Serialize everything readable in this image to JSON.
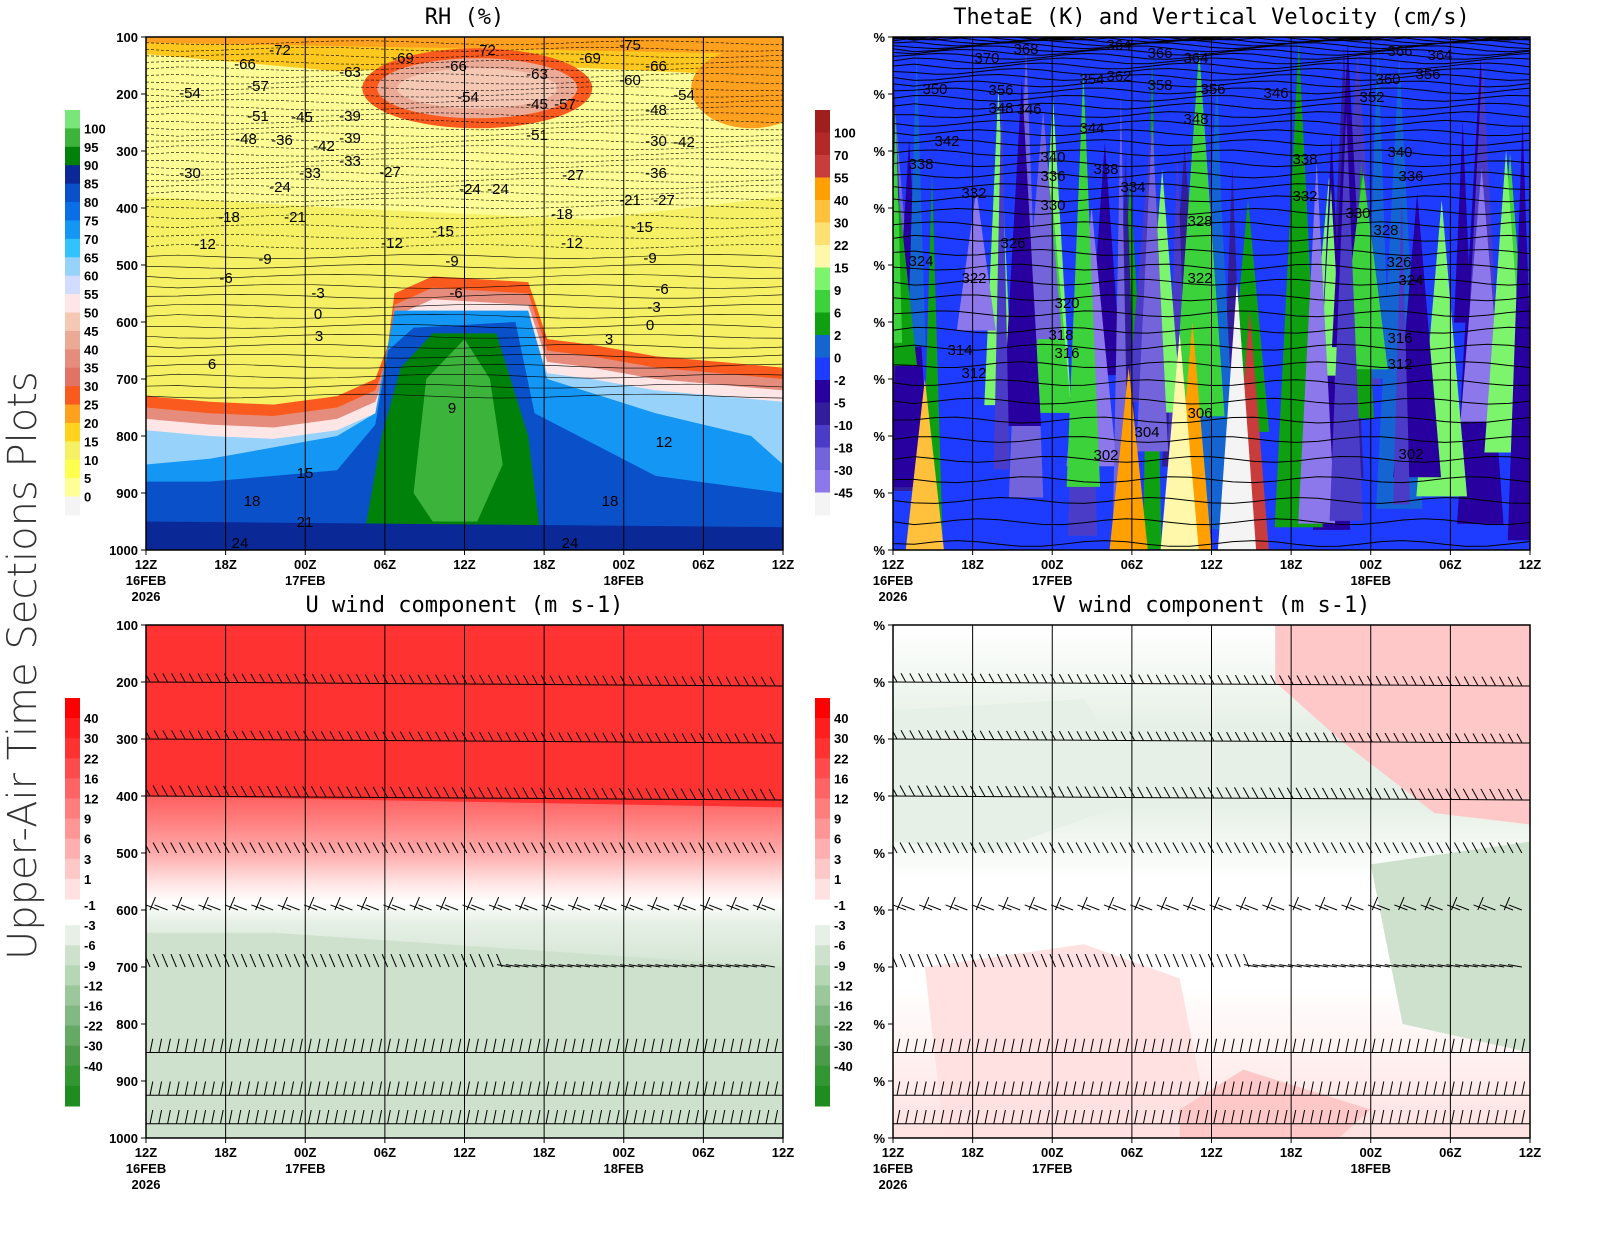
{
  "side_title": "Upper-Air Time Sections Plots",
  "x_ticks": [
    "12Z",
    "18Z",
    "00Z",
    "06Z",
    "12Z",
    "18Z",
    "00Z",
    "06Z",
    "12Z"
  ],
  "x_subticks": {
    "0": [
      "16FEB",
      "2026"
    ],
    "2": [
      "17FEB"
    ],
    "6": [
      "18FEB"
    ]
  },
  "chart_data": [
    {
      "type": "heatmap",
      "title": "RH (%)",
      "ylabel": "",
      "y_ticks": [
        "100",
        "200",
        "300",
        "400",
        "500",
        "600",
        "700",
        "800",
        "900",
        "1000"
      ],
      "ylim": [
        1000,
        100
      ],
      "colorbar": {
        "levels": [
          "100",
          "95",
          "90",
          "85",
          "80",
          "75",
          "70",
          "65",
          "60",
          "55",
          "50",
          "45",
          "40",
          "35",
          "30",
          "25",
          "20",
          "15",
          "10",
          "5",
          "0"
        ],
        "colors": [
          "#78e678",
          "#3cb43c",
          "#00820a",
          "#0a2896",
          "#0a50c8",
          "#0a6ee6",
          "#1496f5",
          "#32c3ff",
          "#96d2fa",
          "#d2dcff",
          "#ffe6e6",
          "#f5c8b4",
          "#ebaa96",
          "#e68c7d",
          "#e17364",
          "#fa5a1e",
          "#ffa01e",
          "#ffd21e",
          "#f5f064",
          "#ffff50",
          "#ffff96",
          "#f4f4f4"
        ]
      },
      "contour_labels": [
        "-72",
        "-66",
        "-63",
        "-69",
        "-66",
        "-72",
        "-63",
        "-69",
        "-75",
        "-66",
        "-60",
        "-54",
        "-57",
        "-51",
        "-45",
        "-48",
        "-54",
        "-57",
        "-51",
        "-45",
        "-54",
        "-48",
        "-42",
        "-39",
        "-36",
        "-33",
        "-30",
        "-39",
        "-33",
        "-42",
        "-36",
        "-30",
        "-27",
        "-24",
        "-21",
        "-27",
        "-24",
        "-27",
        "-21",
        "-24",
        "-18",
        "-15",
        "-18",
        "-15",
        "-12",
        "-9",
        "-12",
        "-12",
        "-9",
        "-6",
        "-9",
        "-6",
        "-6",
        "-3",
        "0",
        "-3",
        "0",
        "3",
        "3",
        "6",
        "9",
        "12",
        "15",
        "18",
        "18",
        "21",
        "24",
        "24"
      ]
    },
    {
      "type": "heatmap",
      "title": "ThetaE (K) and Vertical Velocity (cm/s)",
      "y_ticks": [
        "%",
        "%",
        "%",
        "%",
        "%",
        "%",
        "%",
        "%",
        "%",
        "%"
      ],
      "ylim": [
        1000,
        100
      ],
      "colorbar": {
        "levels": [
          "100",
          "70",
          "55",
          "40",
          "30",
          "22",
          "15",
          "9",
          "6",
          "2",
          "0",
          "-2",
          "-5",
          "-10",
          "-18",
          "-30",
          "-45"
        ],
        "colors": [
          "#a01e1e",
          "#b42828",
          "#c83c3c",
          "#ffa000",
          "#ffc03c",
          "#ffe070",
          "#fff8aa",
          "#7cf56c",
          "#3cd23c",
          "#0ea010",
          "#1464d2",
          "#1e3cff",
          "#2800a0",
          "#321e9b",
          "#4b3cc8",
          "#7364dc",
          "#8c78eb",
          "#f4f4f4"
        ]
      },
      "contour_labels": [
        "370",
        "368",
        "364",
        "366",
        "364",
        "362",
        "358",
        "356",
        "354",
        "356",
        "366",
        "364",
        "360",
        "356",
        "352",
        "348",
        "350",
        "348",
        "346",
        "346",
        "344",
        "342",
        "340",
        "338",
        "340",
        "336",
        "338",
        "334",
        "338",
        "332",
        "336",
        "332",
        "330",
        "330",
        "328",
        "326",
        "328",
        "326",
        "324",
        "322",
        "324",
        "322",
        "320",
        "318",
        "316",
        "316",
        "314",
        "312",
        "312",
        "306",
        "304",
        "302",
        "302"
      ]
    },
    {
      "type": "heatmap",
      "title": "U wind component (m s-1)",
      "y_ticks": [
        "100",
        "200",
        "300",
        "400",
        "500",
        "600",
        "700",
        "800",
        "900",
        "1000"
      ],
      "ylim": [
        1000,
        100
      ],
      "colorbar": {
        "levels": [
          "40",
          "30",
          "22",
          "16",
          "12",
          "9",
          "6",
          "3",
          "1",
          "-1",
          "-3",
          "-6",
          "-9",
          "-12",
          "-16",
          "-22",
          "-30",
          "-40"
        ],
        "colors": [
          "#ff0000",
          "#ff1e1e",
          "#ff3232",
          "#ff4b4b",
          "#ff6464",
          "#ff7d7d",
          "#ff9696",
          "#ffafaf",
          "#ffc8c8",
          "#ffe1e1",
          "#ffffff",
          "#e6f0e6",
          "#cde1cd",
          "#b4d7b4",
          "#9bc89b",
          "#82b982",
          "#64aa64",
          "#4b9b4b",
          "#329632",
          "#1e8c1e"
        ]
      }
    },
    {
      "type": "heatmap",
      "title": "V wind component (m s-1)",
      "y_ticks": [
        "%",
        "%",
        "%",
        "%",
        "%",
        "%",
        "%",
        "%",
        "%",
        "%"
      ],
      "ylim": [
        1000,
        100
      ],
      "colorbar": {
        "levels": [
          "40",
          "30",
          "22",
          "16",
          "12",
          "9",
          "6",
          "3",
          "1",
          "-1",
          "-3",
          "-6",
          "-9",
          "-12",
          "-16",
          "-22",
          "-30",
          "-40"
        ],
        "colors": [
          "#ff0000",
          "#ff1e1e",
          "#ff3232",
          "#ff4b4b",
          "#ff6464",
          "#ff7d7d",
          "#ff9696",
          "#ffafaf",
          "#ffc8c8",
          "#ffe1e1",
          "#ffffff",
          "#e6f0e6",
          "#cde1cd",
          "#b4d7b4",
          "#9bc89b",
          "#82b982",
          "#64aa64",
          "#4b9b4b",
          "#329632",
          "#1e8c1e"
        ]
      }
    }
  ]
}
